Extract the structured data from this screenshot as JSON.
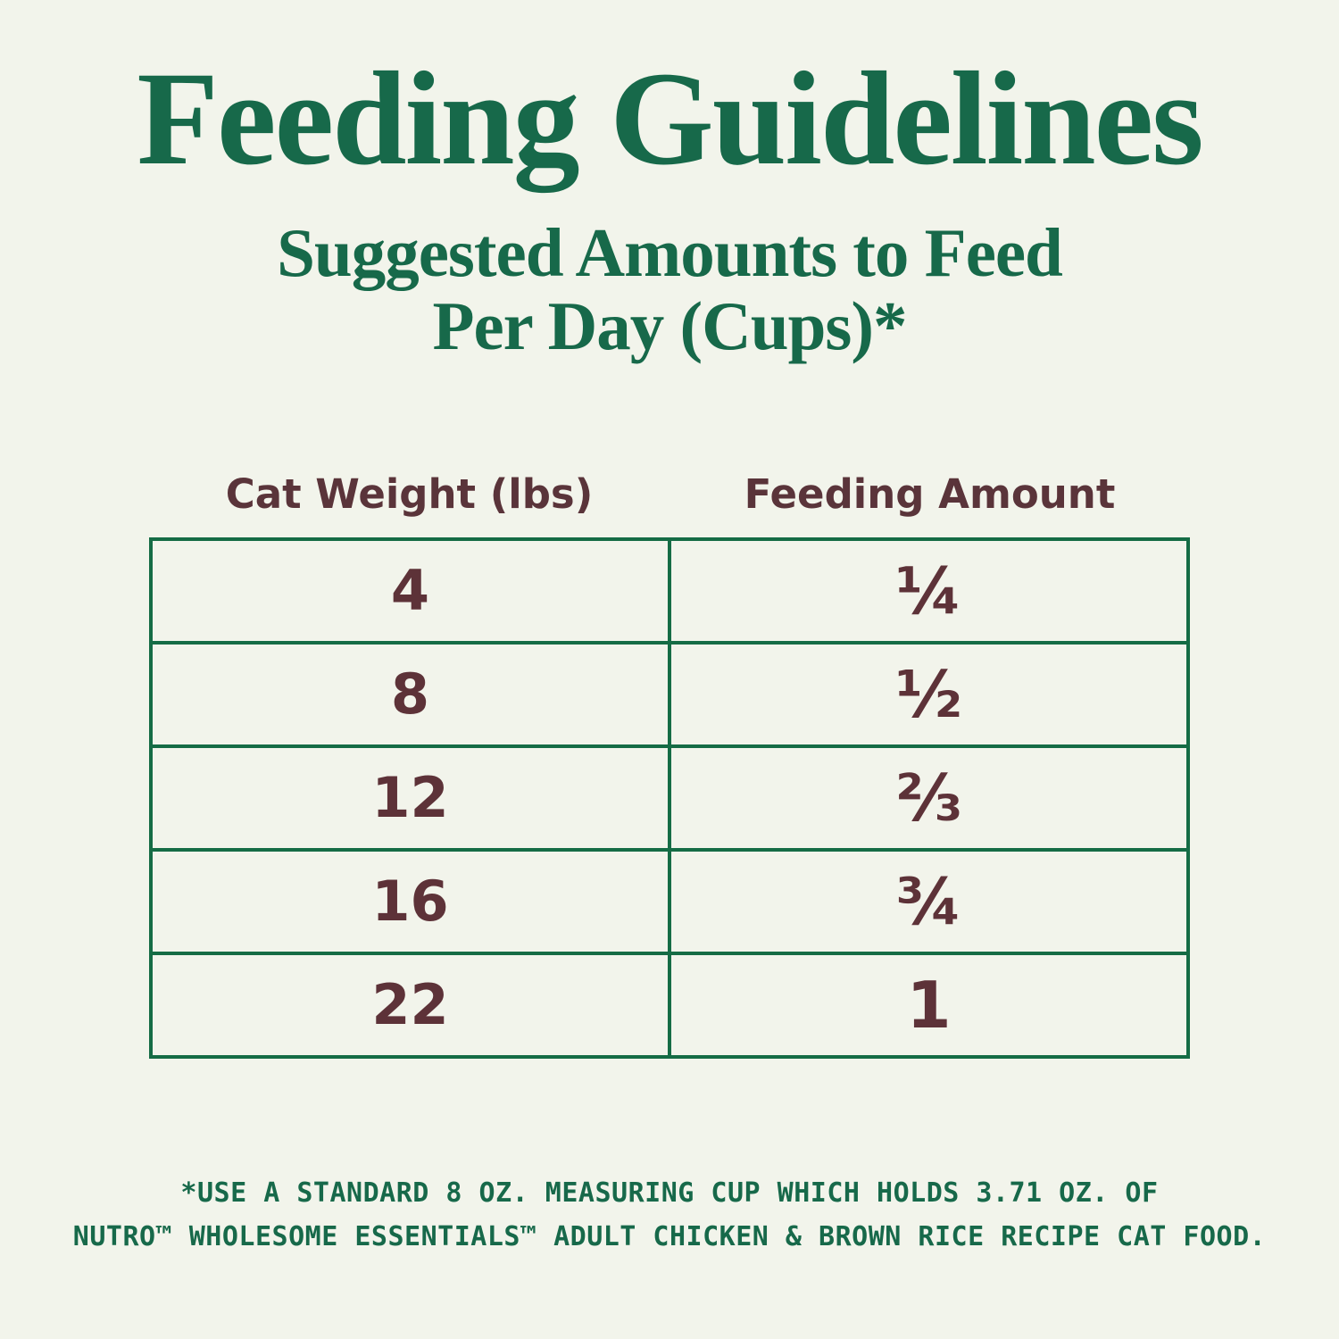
{
  "colors": {
    "background": "#F2F4EB",
    "green_text": "#17694A",
    "table_border_green": "#156C45",
    "brown_text": "#5D3238"
  },
  "title": "Feeding Guidelines",
  "subtitle": {
    "line1": "Suggested Amounts to Feed",
    "line2": "Per Day (Cups)*"
  },
  "table": {
    "headers": {
      "weight": "Cat Weight (lbs)",
      "amount": "Feeding Amount"
    },
    "rows": [
      {
        "weight": "4",
        "amount": "¼"
      },
      {
        "weight": "8",
        "amount": "½"
      },
      {
        "weight": "12",
        "amount": "⅔"
      },
      {
        "weight": "16",
        "amount": "¾"
      },
      {
        "weight": "22",
        "amount": "1"
      }
    ]
  },
  "footnote": {
    "line1": "*USE A STANDARD 8 OZ. MEASURING CUP WHICH HOLDS 3.71 OZ. OF",
    "line2": "NUTRO™ WHOLESOME ESSENTIALS™ ADULT CHICKEN & BROWN RICE RECIPE CAT FOOD."
  }
}
